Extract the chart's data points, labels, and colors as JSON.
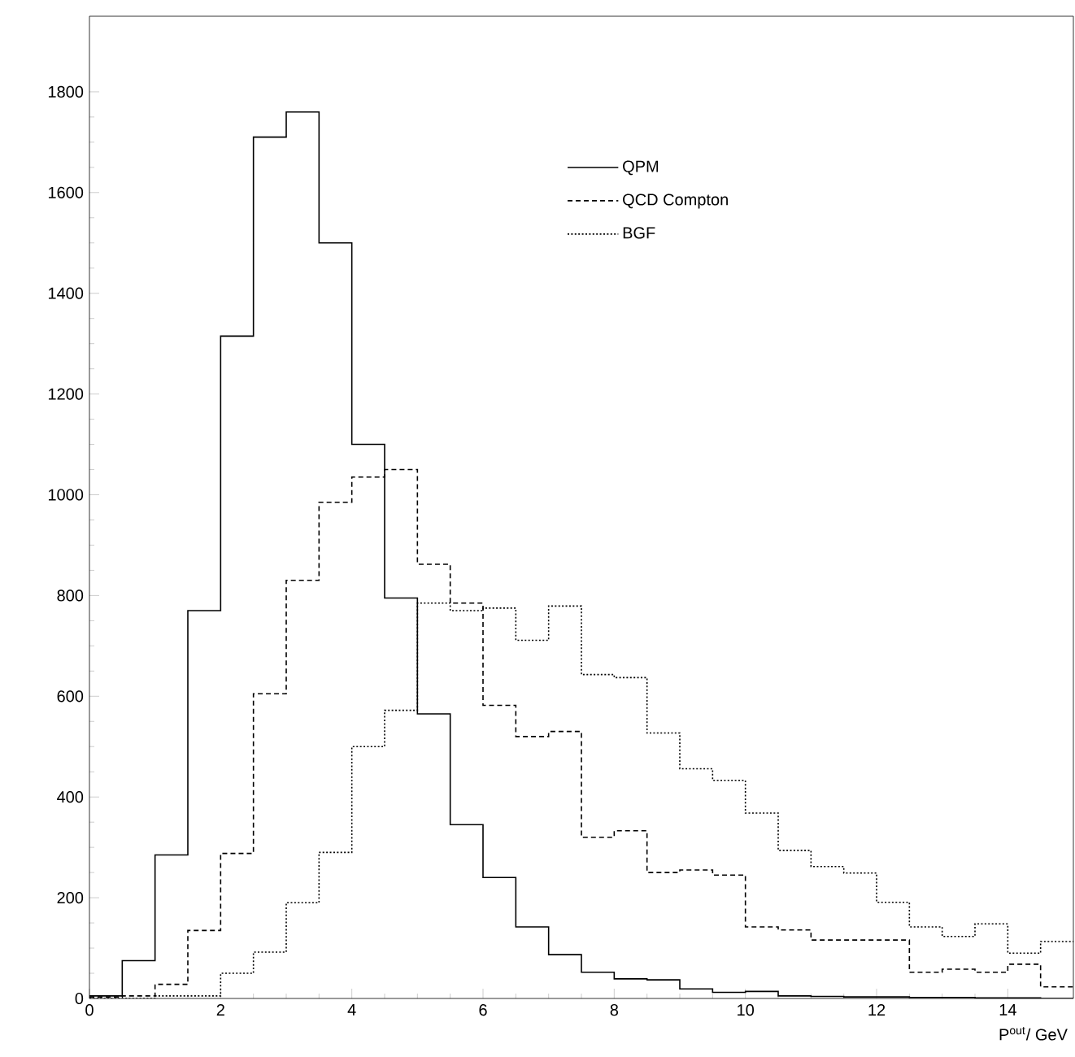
{
  "chart_data": {
    "type": "histogram",
    "xlabel": "P$^{out}$/ GeV",
    "bins": [
      0,
      0.5,
      1,
      1.5,
      2,
      2.5,
      3,
      3.5,
      4,
      4.5,
      5,
      5.5,
      6,
      6.5,
      7,
      7.5,
      8,
      8.5,
      9,
      9.5,
      10,
      10.5,
      11,
      11.5,
      12,
      12.5,
      13,
      13.5,
      14,
      14.5,
      15
    ],
    "series": [
      {
        "name": "QPM",
        "color": "#000000",
        "line_style": "solid",
        "values": [
          5,
          75,
          285,
          770,
          1315,
          1710,
          1760,
          1500,
          1100,
          795,
          565,
          345,
          240,
          142,
          87,
          52,
          39,
          37,
          19,
          12,
          14,
          5,
          4,
          3,
          3,
          2,
          2,
          1,
          1,
          0
        ]
      },
      {
        "name": "QCD Compton",
        "color": "#000000",
        "line_style": "dashed",
        "values": [
          3,
          5,
          28,
          135,
          288,
          605,
          830,
          985,
          1035,
          1050,
          862,
          785,
          582,
          520,
          530,
          320,
          333,
          250,
          255,
          245,
          142,
          136,
          116,
          116,
          116,
          52,
          58,
          52,
          68,
          23
        ]
      },
      {
        "name": "BGF",
        "color": "#000000",
        "line_style": "dotted",
        "values": [
          0,
          0,
          5,
          5,
          50,
          92,
          190,
          290,
          500,
          572,
          785,
          770,
          775,
          711,
          779,
          643,
          637,
          527,
          456,
          433,
          368,
          294,
          262,
          249,
          191,
          142,
          123,
          148,
          90,
          113
        ]
      }
    ],
    "xlim": [
      0,
      15
    ],
    "ylim": [
      0,
      1950
    ],
    "xticks": [
      0,
      2,
      4,
      6,
      8,
      10,
      12,
      14
    ],
    "yticks": [
      0,
      200,
      400,
      600,
      800,
      1000,
      1200,
      1400,
      1600,
      1800
    ],
    "legend": "top right"
  }
}
